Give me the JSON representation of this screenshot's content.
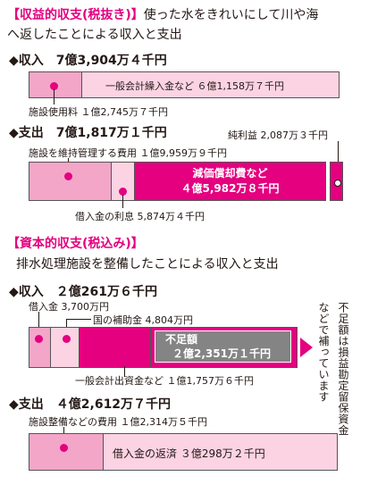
{
  "s1": {
    "title": "【収益的収支(税抜き)】",
    "desc_line1": "使った水をきれいにして川や海",
    "desc_line2": "へ返したことによる収入と支出",
    "income_header": "◆収入　7億3,904万４千円",
    "bar1_general": "一般会計繰入金など ６億1,158万７千円",
    "facility_fee": "施設使用料 １億2,745万７千円",
    "expense_header": "◆支出　7億1,817万１千円",
    "net_profit": "純利益 2,087万３千円",
    "maintenance": "施設を維持管理する費用 １億9,959万９千円",
    "depreciation_l1": "減価償却費など",
    "depreciation_l2": "４億5,982万８千円",
    "interest": "借入金の利息 5,874万４千円"
  },
  "s2": {
    "title": "【資本的収支(税込み)】",
    "desc": "排水処理施設を整備したことによる収入と支出",
    "income_header": "◆収入　２億261万６千円",
    "loan": "借入金 3,700万円",
    "subsidy": "国の補助金 4,804万円",
    "shortage_l1": "不足額",
    "shortage_l2": "２億2,351万１千円",
    "general_budget": "一般会計出資金など １億1,757万６千円",
    "note_col1": "不足額は損益勘定留保資金",
    "note_col2": "などで補っています",
    "expense_header": "◆支出　４億2,612万７千円",
    "facility_cost": "施設整備などの費用 １億2,314万５千円",
    "repayment": "借入金の返済 ３億298万２千円"
  }
}
